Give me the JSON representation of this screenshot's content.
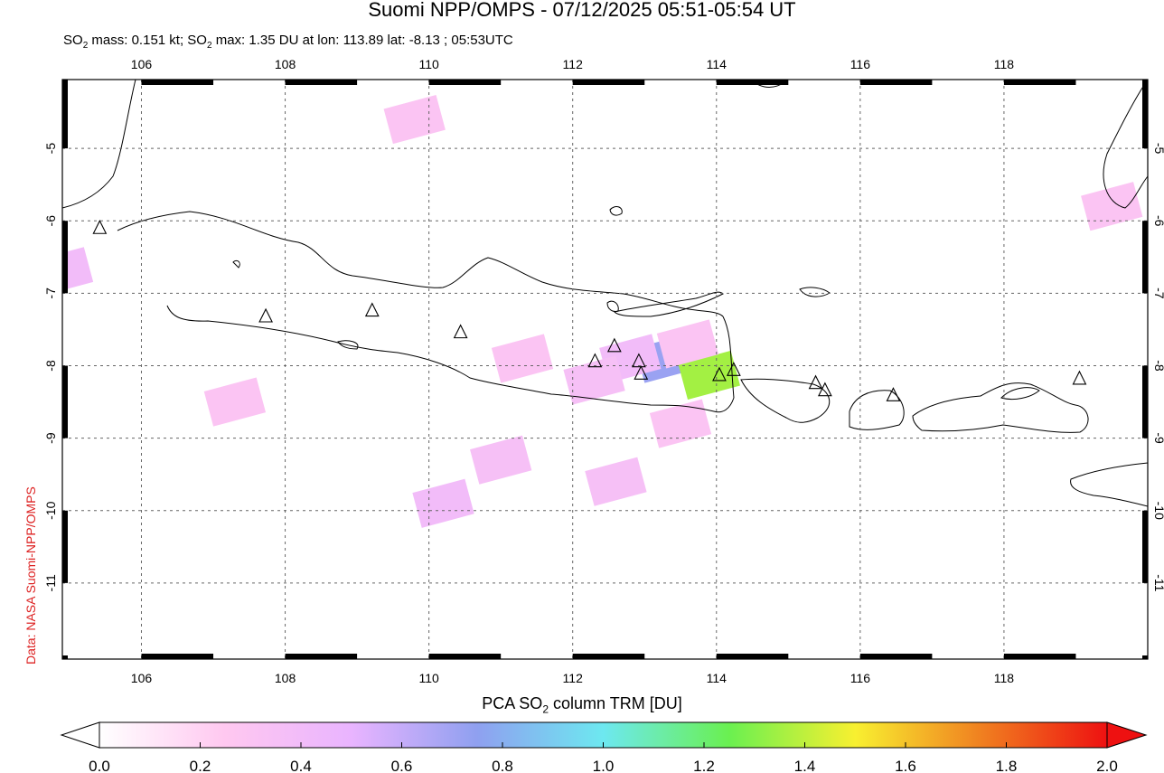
{
  "header": {
    "title": "Suomi NPP/OMPS - 07/12/2025 05:51-05:54 UT",
    "subtitle_prefix": "SO",
    "subtitle_sub": "2",
    "subtitle_mid": " mass: 0.151 kt; SO",
    "subtitle_sub2": "2",
    "subtitle_rest": " max: 1.35 DU at lon: 113.89 lat: -8.13 ; 05:53UTC"
  },
  "credit": "Data: NASA Suomi-NPP/OMPS",
  "colorbar": {
    "title_prefix": "PCA SO",
    "title_sub": "2",
    "title_rest": " column TRM [DU]",
    "ticks": [
      "0.0",
      "0.2",
      "0.4",
      "0.6",
      "0.8",
      "1.0",
      "1.2",
      "1.4",
      "1.6",
      "1.8",
      "2.0"
    ]
  },
  "chart_data": {
    "type": "heatmap",
    "title": "Suomi NPP/OMPS - 07/12/2025 05:51-05:54 UT",
    "xlabel": "",
    "ylabel": "",
    "xlim": [
      104.9,
      120.0
    ],
    "ylim": [
      -12.05,
      -4.05
    ],
    "x_ticks": [
      106,
      108,
      110,
      112,
      114,
      116,
      118
    ],
    "x_tick_labels": [
      "106",
      "108",
      "110",
      "112",
      "114",
      "116",
      "118"
    ],
    "y_ticks": [
      -5,
      -6,
      -7,
      -8,
      -9,
      -10,
      -11
    ],
    "y_tick_labels": [
      "-5",
      "-6",
      "-7",
      "-8",
      "-9",
      "-10",
      "-11"
    ],
    "grid": true,
    "colorscale_range": [
      0.0,
      2.0
    ],
    "colorscale_stops": [
      "#ffffff",
      "#ffc8f0",
      "#e9b4ff",
      "#8fa0f0",
      "#6de8f0",
      "#6af050",
      "#f8f030",
      "#f08020",
      "#ee1111"
    ],
    "so2_cells_du": [
      {
        "lon": 113.3,
        "lat": -7.9,
        "value": 0.72
      },
      {
        "lon": 113.9,
        "lat": -8.13,
        "value": 1.35
      },
      {
        "lon": 112.8,
        "lat": -7.9,
        "value": 0.4
      },
      {
        "lon": 113.6,
        "lat": -7.7,
        "value": 0.3
      },
      {
        "lon": 112.3,
        "lat": -8.2,
        "value": 0.35
      },
      {
        "lon": 111.3,
        "lat": -7.9,
        "value": 0.3
      },
      {
        "lon": 113.5,
        "lat": -8.8,
        "value": 0.3
      },
      {
        "lon": 111.0,
        "lat": -9.3,
        "value": 0.35
      },
      {
        "lon": 110.2,
        "lat": -9.9,
        "value": 0.4
      },
      {
        "lon": 112.6,
        "lat": -9.6,
        "value": 0.35
      },
      {
        "lon": 109.8,
        "lat": -4.6,
        "value": 0.3
      },
      {
        "lon": 119.5,
        "lat": -5.8,
        "value": 0.3
      },
      {
        "lon": 104.9,
        "lat": -6.7,
        "value": 0.4
      },
      {
        "lon": 107.3,
        "lat": -8.5,
        "value": 0.3
      }
    ],
    "volcanoes": [
      {
        "lon": 105.42,
        "lat": -6.1
      },
      {
        "lon": 107.73,
        "lat": -7.32
      },
      {
        "lon": 109.21,
        "lat": -7.24
      },
      {
        "lon": 110.44,
        "lat": -7.54
      },
      {
        "lon": 112.31,
        "lat": -7.94
      },
      {
        "lon": 112.58,
        "lat": -7.73
      },
      {
        "lon": 112.92,
        "lat": -7.94
      },
      {
        "lon": 112.95,
        "lat": -8.11
      },
      {
        "lon": 114.04,
        "lat": -8.13
      },
      {
        "lon": 114.24,
        "lat": -8.06
      },
      {
        "lon": 115.38,
        "lat": -8.24
      },
      {
        "lon": 115.51,
        "lat": -8.34
      },
      {
        "lon": 116.46,
        "lat": -8.41
      },
      {
        "lon": 119.05,
        "lat": -8.18
      }
    ]
  }
}
